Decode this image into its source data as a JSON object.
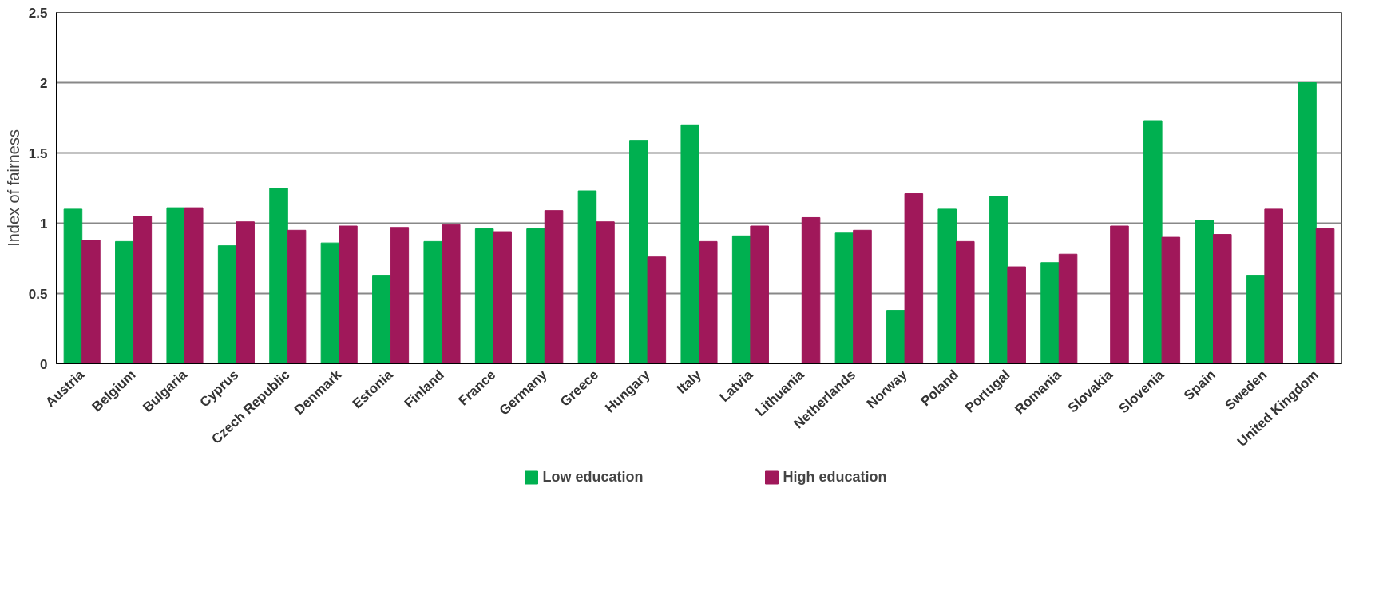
{
  "chart_data": {
    "type": "bar",
    "ylabel": "Index of fairness",
    "categories": [
      "Austria",
      "Belgium",
      "Bulgaria",
      "Cyprus",
      "Czech Republic",
      "Denmark",
      "Estonia",
      "Finland",
      "France",
      "Germany",
      "Greece",
      "Hungary",
      "Italy",
      "Latvia",
      "Lithuania",
      "Netherlands",
      "Norway",
      "Poland",
      "Portugal",
      "Romania",
      "Slovakia",
      "Slovenia",
      "Spain",
      "Sweden",
      "United Kingdom"
    ],
    "series": [
      {
        "name": "Low education",
        "color": "#00b050",
        "values": [
          1.1,
          0.87,
          1.11,
          0.84,
          1.25,
          0.86,
          0.63,
          0.87,
          0.96,
          0.96,
          1.23,
          1.59,
          1.7,
          0.91,
          null,
          0.93,
          0.38,
          1.1,
          1.19,
          0.72,
          null,
          1.73,
          1.02,
          0.63,
          2.0
        ]
      },
      {
        "name": "High education",
        "color": "#a0185a",
        "values": [
          0.88,
          1.05,
          1.11,
          1.01,
          0.95,
          0.98,
          0.97,
          0.99,
          0.94,
          1.09,
          1.01,
          0.76,
          0.87,
          0.98,
          1.04,
          0.95,
          1.21,
          0.87,
          0.69,
          0.78,
          0.98,
          0.9,
          0.92,
          1.1,
          0.96
        ]
      }
    ],
    "ylim": [
      0,
      2.5
    ],
    "yticks": [
      0,
      0.5,
      1,
      1.5,
      2,
      2.5
    ],
    "grid": "y",
    "legend": "bottom"
  }
}
